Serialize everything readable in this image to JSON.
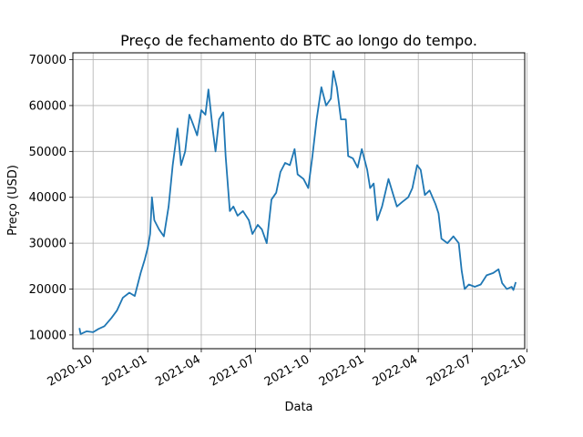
{
  "chart_data": {
    "type": "line",
    "title": "Preço de fechamento do BTC ao longo do tempo.",
    "xlabel": "Data",
    "ylabel": "Preço (USD)",
    "ylim": [
      7000,
      71500
    ],
    "xlim": [
      "2020-08-28",
      "2022-09-27"
    ],
    "grid": true,
    "line_color": "#1f77b4",
    "y_ticks": [
      10000,
      20000,
      30000,
      40000,
      50000,
      60000,
      70000
    ],
    "x_ticks": [
      "2020-10",
      "2021-01",
      "2021-04",
      "2021-07",
      "2021-10",
      "2022-01",
      "2022-04",
      "2022-07",
      "2022-10"
    ],
    "series": [
      {
        "x": [
          "2020-09-08",
          "2020-09-10",
          "2020-09-20",
          "2020-10-01",
          "2020-10-10",
          "2020-10-20",
          "2020-11-01",
          "2020-11-10",
          "2020-11-20",
          "2020-12-01",
          "2020-12-10",
          "2020-12-20",
          "2020-12-27",
          "2021-01-01",
          "2021-01-05",
          "2021-01-08",
          "2021-01-12",
          "2021-01-20",
          "2021-01-28",
          "2021-02-05",
          "2021-02-12",
          "2021-02-20",
          "2021-02-26",
          "2021-03-05",
          "2021-03-12",
          "2021-03-18",
          "2021-03-25",
          "2021-04-01",
          "2021-04-08",
          "2021-04-13",
          "2021-04-20",
          "2021-04-25",
          "2021-05-01",
          "2021-05-08",
          "2021-05-12",
          "2021-05-19",
          "2021-05-25",
          "2021-06-01",
          "2021-06-10",
          "2021-06-20",
          "2021-06-26",
          "2021-07-05",
          "2021-07-12",
          "2021-07-20",
          "2021-07-28",
          "2021-08-05",
          "2021-08-12",
          "2021-08-20",
          "2021-08-28",
          "2021-09-05",
          "2021-09-10",
          "2021-09-20",
          "2021-09-28",
          "2021-10-05",
          "2021-10-12",
          "2021-10-20",
          "2021-10-28",
          "2021-11-05",
          "2021-11-09",
          "2021-11-15",
          "2021-11-22",
          "2021-11-30",
          "2021-12-04",
          "2021-12-12",
          "2021-12-20",
          "2021-12-27",
          "2022-01-05",
          "2022-01-10",
          "2022-01-16",
          "2022-01-22",
          "2022-01-30",
          "2022-02-10",
          "2022-02-18",
          "2022-02-24",
          "2022-03-05",
          "2022-03-15",
          "2022-03-22",
          "2022-03-30",
          "2022-04-05",
          "2022-04-12",
          "2022-04-20",
          "2022-04-30",
          "2022-05-05",
          "2022-05-10",
          "2022-05-20",
          "2022-05-30",
          "2022-06-08",
          "2022-06-13",
          "2022-06-18",
          "2022-06-25",
          "2022-07-05",
          "2022-07-15",
          "2022-07-25",
          "2022-08-05",
          "2022-08-14",
          "2022-08-20",
          "2022-08-28",
          "2022-09-05",
          "2022-09-08",
          "2022-09-12"
        ],
        "values": [
          11500,
          10200,
          10800,
          10600,
          11300,
          11900,
          13700,
          15300,
          18100,
          19200,
          18500,
          23500,
          26500,
          29000,
          32000,
          40000,
          35000,
          33000,
          31500,
          38000,
          47000,
          55000,
          47000,
          50000,
          58000,
          56000,
          53500,
          59000,
          58000,
          63500,
          55000,
          50000,
          57000,
          58500,
          49000,
          37000,
          38000,
          36000,
          37000,
          35000,
          32000,
          34000,
          33000,
          30000,
          39500,
          41000,
          45500,
          47500,
          47000,
          50500,
          45000,
          44000,
          42000,
          49000,
          57000,
          64000,
          60000,
          61500,
          67500,
          64000,
          57000,
          57000,
          49000,
          48500,
          46500,
          50500,
          46000,
          42000,
          43000,
          35000,
          38000,
          44000,
          40500,
          38000,
          39000,
          40000,
          42000,
          47000,
          46000,
          40500,
          41500,
          38500,
          36500,
          31000,
          30000,
          31500,
          30000,
          24000,
          20000,
          21000,
          20500,
          21000,
          23000,
          23500,
          24300,
          21300,
          20000,
          20500,
          19800,
          21500
        ]
      }
    ]
  }
}
